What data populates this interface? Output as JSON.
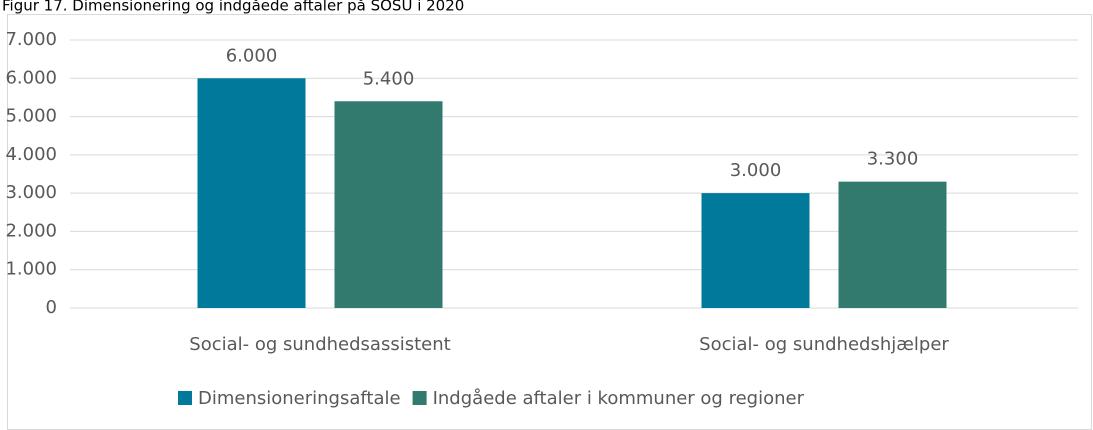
{
  "chart_data": {
    "type": "bar",
    "title": "Figur 17. Dimensionering og indgåede aftaler på SOSU i 2020",
    "categories": [
      "Social- og sundhedsassistent",
      "Social- og sundhedshjælper"
    ],
    "series": [
      {
        "name": "Dimensioneringsaftale",
        "color": "#00799a",
        "values": [
          6000,
          3000
        ],
        "value_labels": [
          "6.000",
          "3.000"
        ]
      },
      {
        "name": "Indgåede aftaler i kommuner og regioner",
        "color": "#327a6d",
        "values": [
          5400,
          3300
        ],
        "value_labels": [
          "5.400",
          "3.300"
        ]
      }
    ],
    "ylim": [
      0,
      7000
    ],
    "yticks": [
      0,
      {
        "value": 1000,
        "label": "1.000"
      },
      {
        "value": 2000,
        "label": "2.000"
      },
      {
        "value": 3000,
        "label": "3.000"
      },
      {
        "value": 4000,
        "label": "4.000"
      },
      {
        "value": 5000,
        "label": "5.000"
      },
      {
        "value": 6000,
        "label": "6.000"
      },
      {
        "value": 7000,
        "label": "7.000"
      }
    ],
    "grid": true,
    "legend": "bottom"
  }
}
